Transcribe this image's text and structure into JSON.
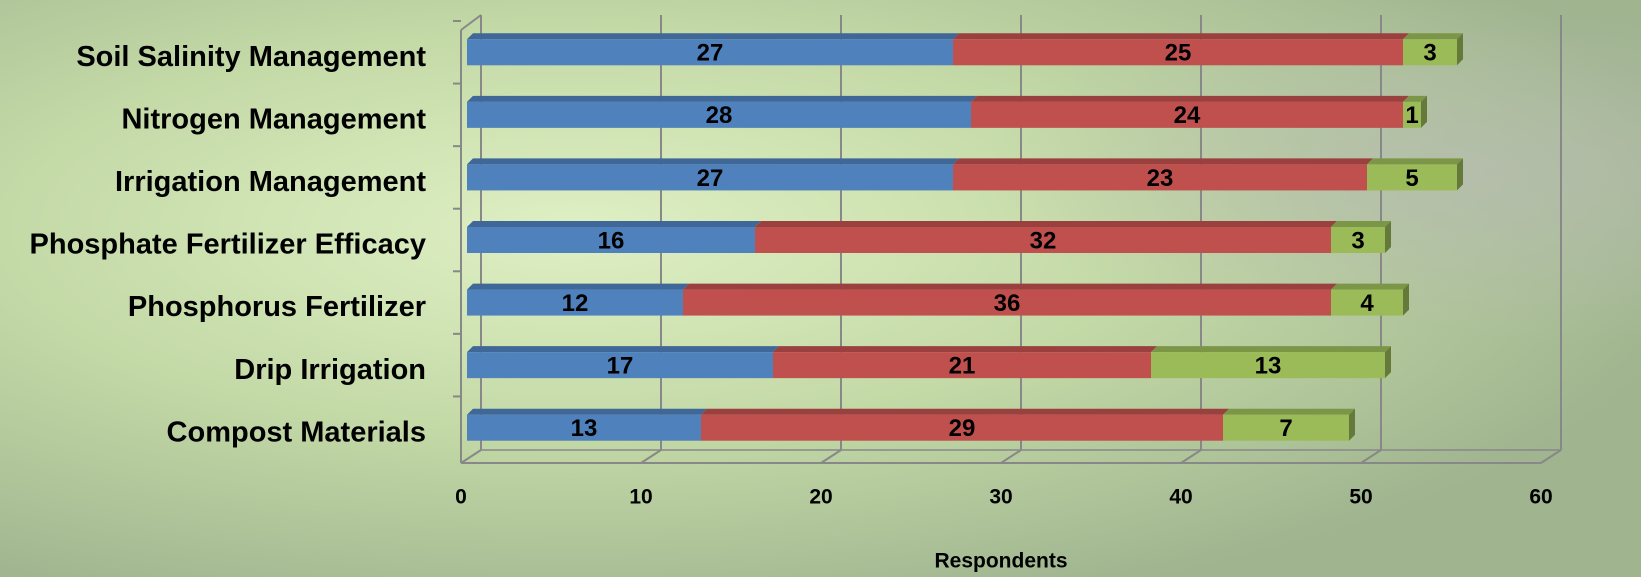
{
  "chart_data": {
    "type": "stacked-bar-horizontal",
    "categories": [
      "Soil Salinity Management",
      "Nitrogen Management",
      "Irrigation Management",
      "Phosphate Fertilizer Efficacy",
      "Phosphorus Fertilizer",
      "Drip Irrigation",
      "Compost Materials"
    ],
    "series": [
      {
        "color": "#4f81bd",
        "values": [
          27,
          28,
          27,
          16,
          12,
          17,
          13
        ]
      },
      {
        "color": "#c0504d",
        "values": [
          25,
          24,
          23,
          32,
          36,
          21,
          29
        ]
      },
      {
        "color": "#9bbb59",
        "values": [
          3,
          1,
          5,
          3,
          4,
          13,
          7
        ]
      }
    ],
    "xlabel": "Respondents",
    "xlim": [
      0,
      60
    ],
    "xticks": [
      0,
      10,
      20,
      30,
      40,
      50,
      60
    ],
    "grid": true
  }
}
